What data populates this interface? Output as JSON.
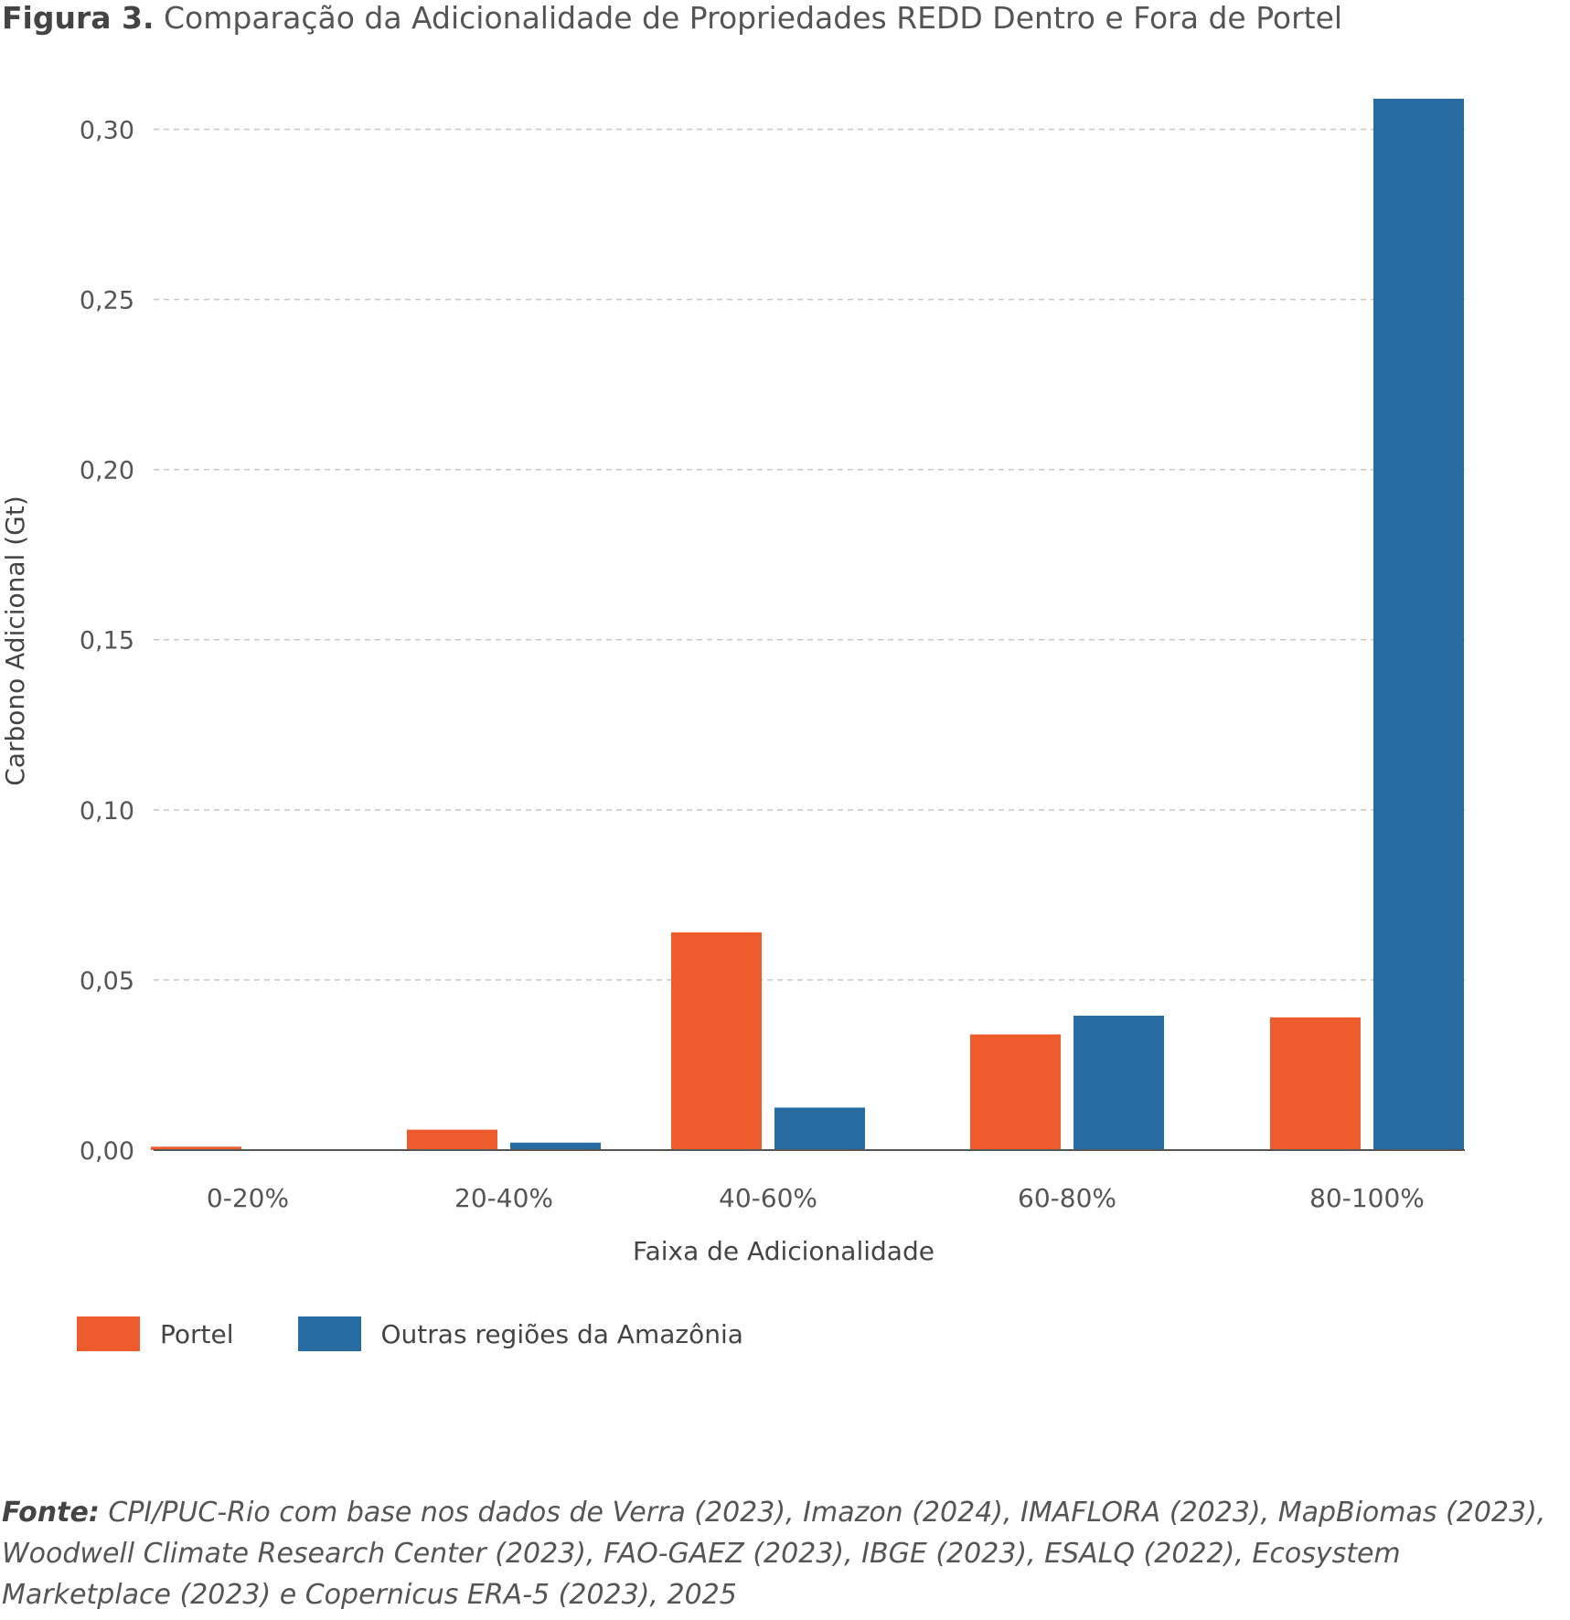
{
  "figure": {
    "label": "Figura 3.",
    "title": "Comparação da Adicionalidade de Propriedades REDD Dentro e Fora de Portel"
  },
  "chart_data": {
    "type": "bar",
    "categories": [
      "0-20%",
      "20-40%",
      "40-60%",
      "60-80%",
      "80-100%"
    ],
    "series": [
      {
        "name": "Portel",
        "color": "#ed5a2c",
        "values": [
          0.001,
          0.006,
          0.064,
          0.034,
          0.039
        ]
      },
      {
        "name": "Outras regiões da Amazônia",
        "color": "#266ca3",
        "values": [
          0.0,
          0.0022,
          0.0125,
          0.0395,
          0.309
        ]
      }
    ],
    "xlabel": "Faixa de Adicionalidade",
    "ylabel": "Carbono Adicional (Gt)",
    "ylim": [
      0,
      0.309
    ],
    "yticks": [
      0.0,
      0.05,
      0.1,
      0.15,
      0.2,
      0.25,
      0.3
    ],
    "ytick_labels": [
      "0,00",
      "0,05",
      "0,10",
      "0,15",
      "0,20",
      "0,25",
      "0,30"
    ],
    "grid": true,
    "legend_position": "bottom-left"
  },
  "source": {
    "label": "Fonte:",
    "text": "CPI/PUC-Rio com base nos dados de Verra (2023), Imazon (2024), IMAFLORA (2023), MapBiomas (2023), Woodwell Climate Research Center (2023), FAO-GAEZ (2023), IBGE (2023), ESALQ (2022), Ecosystem Marketplace (2023) e Copernicus ERA-5 (2023), 2025"
  }
}
